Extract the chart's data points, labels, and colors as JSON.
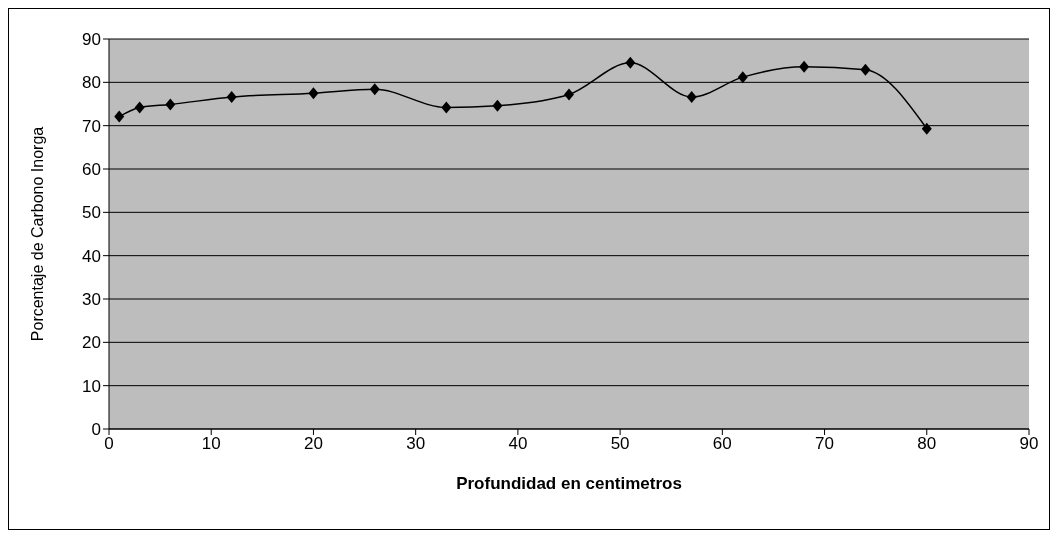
{
  "chart_data": {
    "type": "line",
    "xlabel": "Profundidad en centimetros",
    "ylabel": "Porcentaje de Carbono Inorga",
    "x": [
      1,
      3,
      6,
      12,
      20,
      26,
      33,
      38,
      45,
      51,
      57,
      62,
      68,
      74,
      80
    ],
    "series": [
      {
        "color": "#000000",
        "values": [
          72.1,
          74.2,
          74.9,
          76.6,
          77.5,
          78.4,
          74.2,
          74.6,
          77.2,
          84.5,
          76.6,
          81.2,
          83.6,
          82.9,
          69.3
        ]
      }
    ],
    "xlim": [
      0,
      90
    ],
    "xticks": [
      0,
      10,
      20,
      30,
      40,
      50,
      60,
      70,
      80,
      90
    ],
    "ylim": [
      0,
      90
    ],
    "yticks": [
      0,
      10,
      20,
      30,
      40,
      50,
      60,
      70,
      80,
      90
    ],
    "grid": "y",
    "legend": false,
    "marker": "diamond",
    "line_style": "solid"
  }
}
